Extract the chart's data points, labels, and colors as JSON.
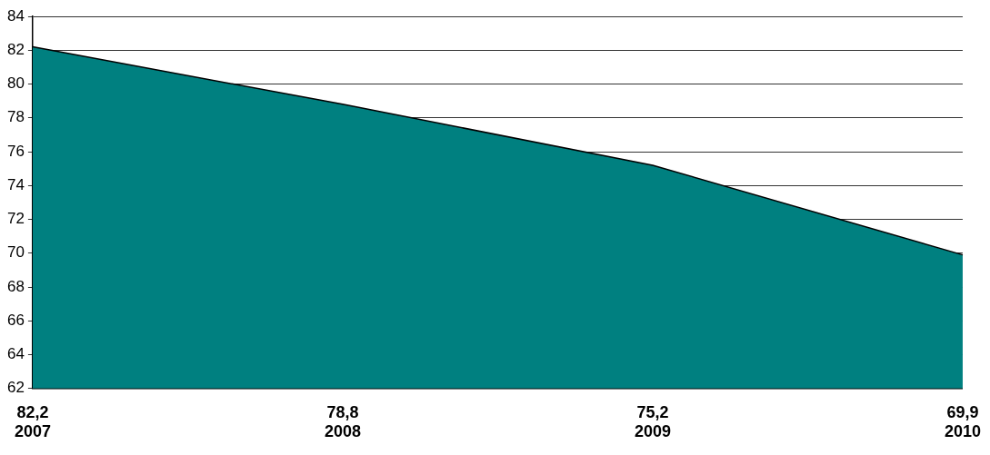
{
  "chart_data": {
    "type": "area",
    "categories": [
      "2007",
      "2008",
      "2009",
      "2010"
    ],
    "values": [
      82.2,
      78.8,
      75.2,
      69.9
    ],
    "value_labels": [
      "82,2",
      "78,8",
      "75,2",
      "69,9"
    ],
    "color": "#008080",
    "ylim": [
      62,
      84
    ],
    "yticks": [
      62,
      64,
      66,
      68,
      70,
      72,
      74,
      76,
      78,
      80,
      82,
      84
    ],
    "grid": "y"
  }
}
